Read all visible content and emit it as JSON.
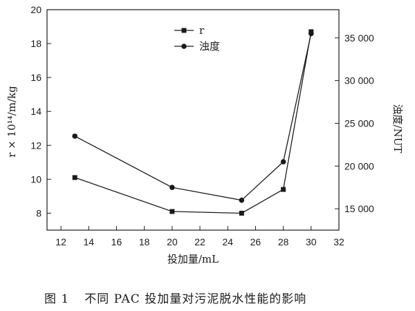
{
  "chart_data": {
    "type": "line",
    "xlabel": "投加量/mL",
    "ylabel_left": "r × 10¹⁴/m/kg",
    "ylabel_right": "浊度/NUT",
    "x_range": [
      11,
      32
    ],
    "y_left_range": [
      7,
      20
    ],
    "y_right_range": [
      12500,
      38300
    ],
    "x_ticks": [
      12,
      14,
      16,
      18,
      20,
      22,
      24,
      26,
      28,
      30,
      32
    ],
    "x_tick_labels": [
      "12",
      "14",
      "16",
      "18",
      "20",
      "22",
      "24",
      "26",
      "28",
      "30",
      "32"
    ],
    "y_left_ticks": [
      8,
      10,
      12,
      14,
      16,
      18,
      20
    ],
    "y_left_tick_labels": [
      "8",
      "10",
      "12",
      "14",
      "16",
      "18",
      "20"
    ],
    "y_right_ticks": [
      15000,
      20000,
      25000,
      30000,
      35000
    ],
    "y_right_tick_labels": [
      "15 000",
      "20 000",
      "25 000",
      "30 000",
      "35 000"
    ],
    "series": [
      {
        "name": "r",
        "axis": "left",
        "marker": "square",
        "x": [
          13,
          20,
          25,
          28,
          30
        ],
        "y": [
          10.1,
          8.1,
          8.0,
          9.4,
          18.7
        ]
      },
      {
        "name": "浊度",
        "axis": "right",
        "marker": "circle",
        "x": [
          13,
          20,
          25,
          28,
          30
        ],
        "y": [
          23500,
          17500,
          16000,
          20500,
          35500
        ]
      }
    ],
    "legend_position": "top-right",
    "grid": false
  },
  "caption": {
    "figure_number": "图 1",
    "text": "不同 PAC 投加量对污泥脱水性能的影响"
  }
}
